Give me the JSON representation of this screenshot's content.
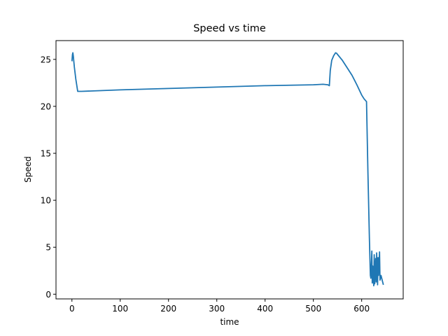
{
  "chart_data": {
    "type": "line",
    "title": "Speed vs time",
    "xlabel": "time",
    "ylabel": "Speed",
    "xlim": [
      -33,
      686
    ],
    "ylim": [
      -0.5,
      27.0
    ],
    "xticks": [
      0,
      100,
      200,
      300,
      400,
      500,
      600
    ],
    "yticks": [
      0,
      5,
      10,
      15,
      20,
      25
    ],
    "grid": false,
    "legend": null,
    "series": [
      {
        "name": "Speed",
        "color": "#1f77b4",
        "x": [
          0,
          1,
          2,
          3,
          5,
          8,
          12,
          20,
          100,
          200,
          300,
          400,
          500,
          520,
          530,
          533,
          535,
          538,
          542,
          546,
          548,
          552,
          560,
          570,
          580,
          590,
          600,
          605,
          610,
          613,
          616,
          618,
          619,
          621,
          622,
          623,
          625,
          626,
          627,
          629,
          630,
          631,
          633,
          634,
          635,
          637,
          638,
          640,
          643,
          645
        ],
        "y": [
          24.8,
          25.5,
          25.7,
          25.3,
          24.2,
          22.9,
          21.6,
          21.6,
          21.75,
          21.9,
          22.05,
          22.2,
          22.3,
          22.35,
          22.3,
          22.2,
          23.8,
          24.9,
          25.4,
          25.7,
          25.65,
          25.4,
          24.9,
          24.1,
          23.3,
          22.3,
          21.2,
          20.8,
          20.5,
          13.0,
          6.0,
          2.0,
          1.7,
          4.6,
          1.2,
          3.0,
          0.9,
          4.2,
          1.1,
          3.8,
          1.3,
          4.4,
          1.0,
          3.9,
          2.0,
          4.5,
          1.5,
          2.0,
          1.4,
          1.0
        ]
      }
    ]
  },
  "axes": {
    "x_ticks": [
      {
        "label": "0",
        "value": 0
      },
      {
        "label": "100",
        "value": 100
      },
      {
        "label": "200",
        "value": 200
      },
      {
        "label": "300",
        "value": 300
      },
      {
        "label": "400",
        "value": 400
      },
      {
        "label": "500",
        "value": 500
      },
      {
        "label": "600",
        "value": 600
      }
    ],
    "y_ticks": [
      {
        "label": "0",
        "value": 0
      },
      {
        "label": "5",
        "value": 5
      },
      {
        "label": "10",
        "value": 10
      },
      {
        "label": "15",
        "value": 15
      },
      {
        "label": "20",
        "value": 20
      },
      {
        "label": "25",
        "value": 25
      }
    ]
  }
}
